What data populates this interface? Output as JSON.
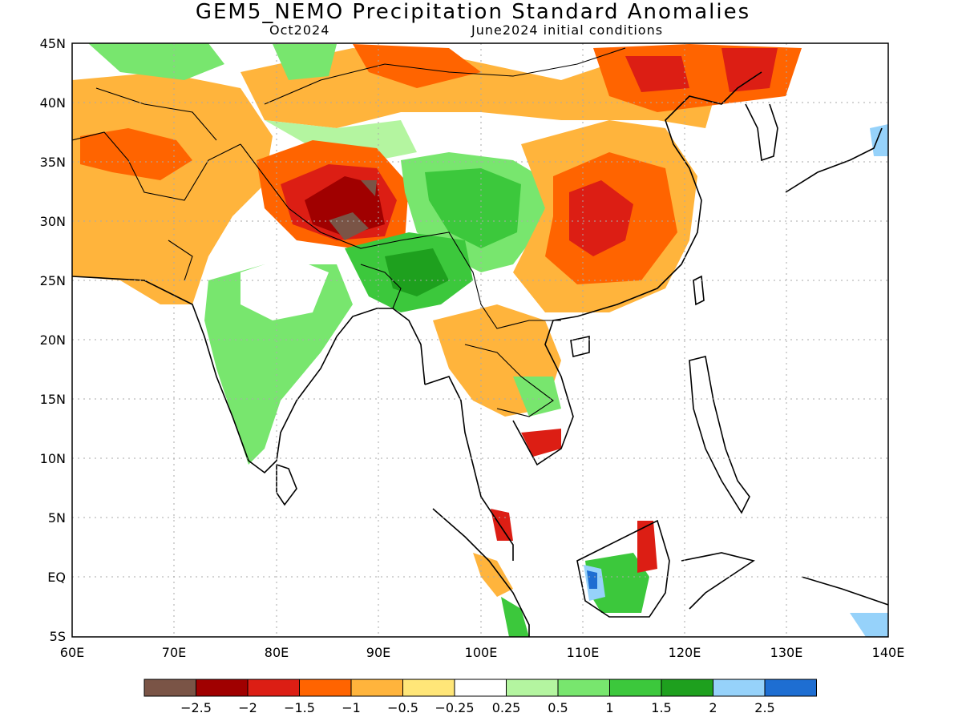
{
  "title": "GEM5_NEMO Precipitation Standard Anomalies",
  "subtitle_left": "Oct2024",
  "subtitle_right": "June2024 initial conditions",
  "map": {
    "lon_range": [
      60,
      140
    ],
    "lat_range": [
      -5,
      45
    ],
    "x_ticks": [
      "60E",
      "70E",
      "80E",
      "90E",
      "100E",
      "110E",
      "120E",
      "130E",
      "140E"
    ],
    "y_ticks": [
      "45N",
      "40N",
      "35N",
      "30N",
      "25N",
      "20N",
      "15N",
      "10N",
      "5N",
      "EQ",
      "5S"
    ]
  },
  "colorbar": {
    "colors": [
      "#7a5446",
      "#a00000",
      "#dc1e14",
      "#ff6400",
      "#ffb43c",
      "#ffe678",
      "#ffffff",
      "#b4f5a0",
      "#78e66e",
      "#3cc83c",
      "#1ea01e",
      "#96d2fa",
      "#1e6ed2"
    ],
    "labels": [
      "-2.5",
      "-2",
      "-1.5",
      "-1",
      "-0.5",
      "-0.25",
      "0.25",
      "0.5",
      "1",
      "1.5",
      "2",
      "2.5"
    ]
  },
  "anomaly_regions": [
    {
      "name": "west-china-india-orange",
      "color": "#ffb43c"
    },
    {
      "name": "tibet-red",
      "color": "#dc1e14"
    },
    {
      "name": "southeast-china-orange",
      "color": "#ff6400"
    },
    {
      "name": "myanmar-green",
      "color": "#3cc83c"
    },
    {
      "name": "borneo-green",
      "color": "#3cc83c"
    },
    {
      "name": "borneo-blue",
      "color": "#96d2fa"
    }
  ]
}
